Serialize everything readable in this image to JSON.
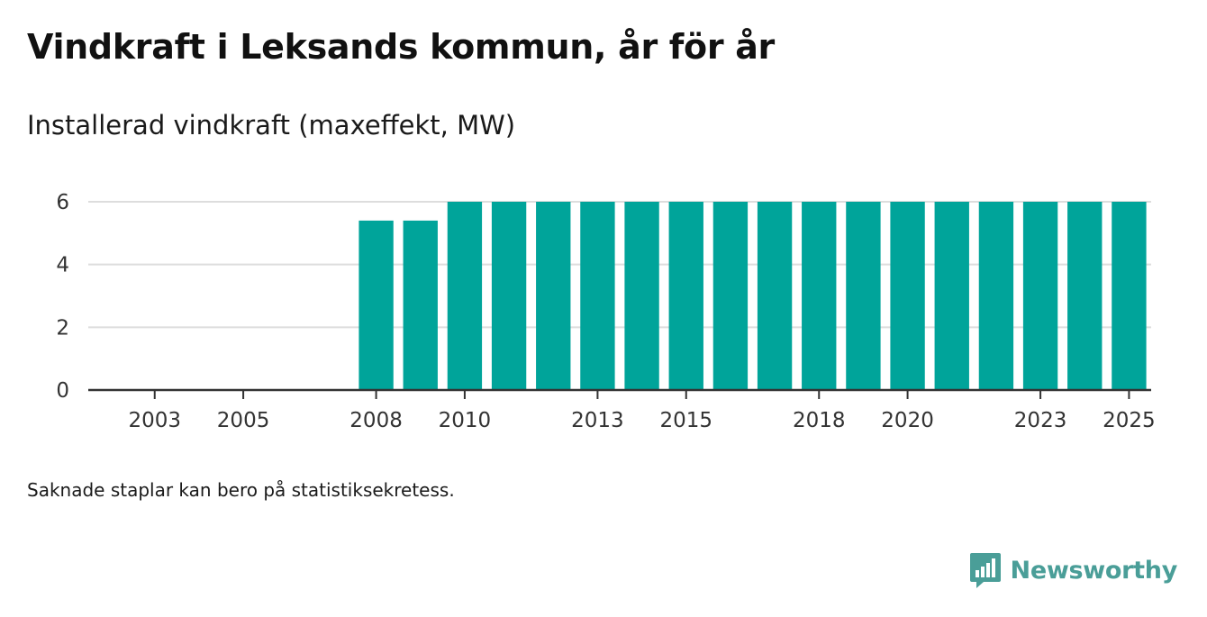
{
  "title": "Vindkraft i Leksands kommun, år för år",
  "subtitle": "Installerad vindkraft (maxeffekt, MW)",
  "note": "Saknade staplar kan bero på statistiksekretess.",
  "brand": {
    "name": "Newsworthy",
    "icon": "newsworthy-logo-icon",
    "color": "#4a9e98"
  },
  "colors": {
    "bar": "#00a49a",
    "grid": "#dddddd",
    "axis": "#333333"
  },
  "chart_data": {
    "type": "bar",
    "title": "Vindkraft i Leksands kommun, år för år",
    "ylabel": "Installerad vindkraft (maxeffekt, MW)",
    "xlabel": "",
    "ylim": [
      0,
      6
    ],
    "yticks": [
      0,
      2,
      4,
      6
    ],
    "grid": true,
    "categories": [
      2002,
      2003,
      2004,
      2005,
      2006,
      2007,
      2008,
      2009,
      2010,
      2011,
      2012,
      2013,
      2014,
      2015,
      2016,
      2017,
      2018,
      2019,
      2020,
      2021,
      2022,
      2023,
      2024,
      2025
    ],
    "values": [
      0,
      0,
      0,
      0,
      0,
      0,
      5.4,
      5.4,
      6,
      6,
      6,
      6,
      6,
      6,
      6,
      6,
      6,
      6,
      6,
      6,
      6,
      6,
      6,
      6
    ],
    "xtick_labels": [
      "2003",
      "2005",
      "2008",
      "2010",
      "2013",
      "2015",
      "2018",
      "2020",
      "2023",
      "2025"
    ]
  }
}
